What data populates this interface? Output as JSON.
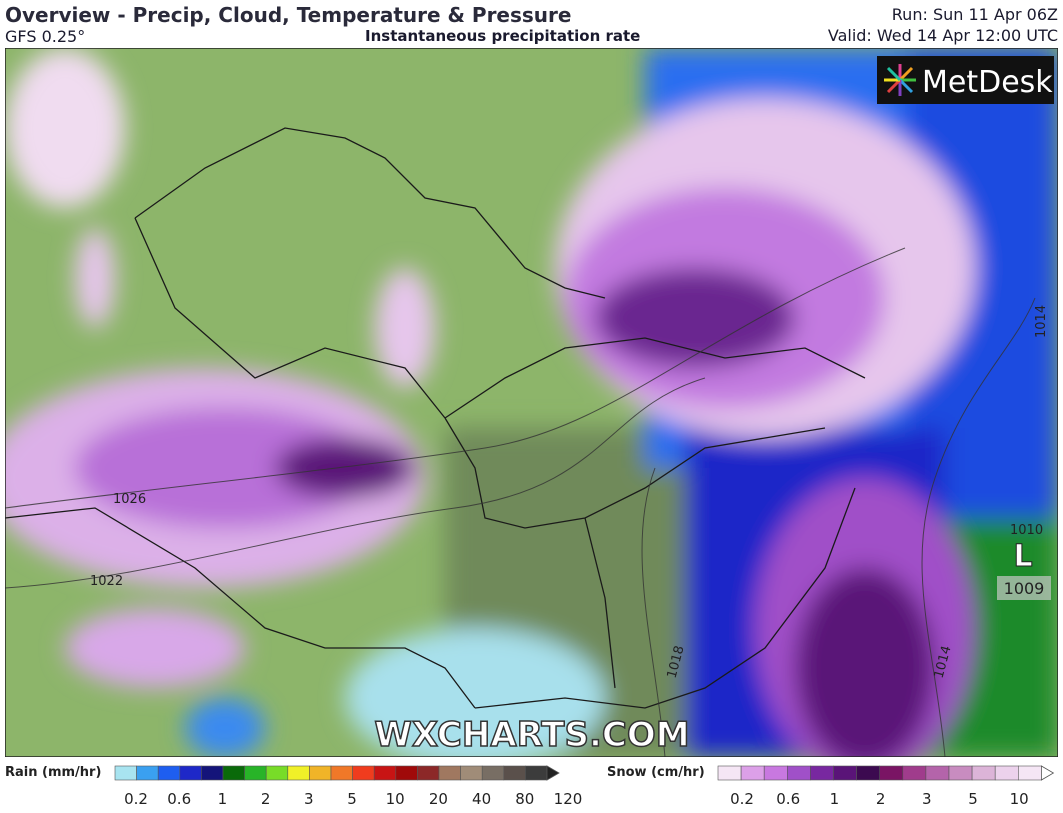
{
  "header": {
    "title": "Overview - Precip, Cloud, Temperature & Pressure",
    "model": "GFS 0.25°",
    "subtitle": "Instantaneous precipitation rate",
    "run": "Run: Sun 11 Apr 06Z",
    "valid": "Valid: Wed 14 Apr 12:00 UTC"
  },
  "map": {
    "isobar_labels": [
      "1026",
      "1022",
      "1018",
      "1014",
      "1014",
      "1010",
      "1009"
    ],
    "low_label": "L",
    "logo": "MetDesk",
    "watermark": "WXCHARTS.COM"
  },
  "legend": {
    "rain": {
      "label": "Rain (mm/hr)",
      "ticks": [
        "0.2",
        "0.6",
        "1",
        "2",
        "3",
        "5",
        "10",
        "20",
        "40",
        "80",
        "120"
      ]
    },
    "snow": {
      "label": "Snow (cm/hr)",
      "ticks": [
        "0.2",
        "0.6",
        "1",
        "2",
        "3",
        "5",
        "10"
      ]
    }
  }
}
